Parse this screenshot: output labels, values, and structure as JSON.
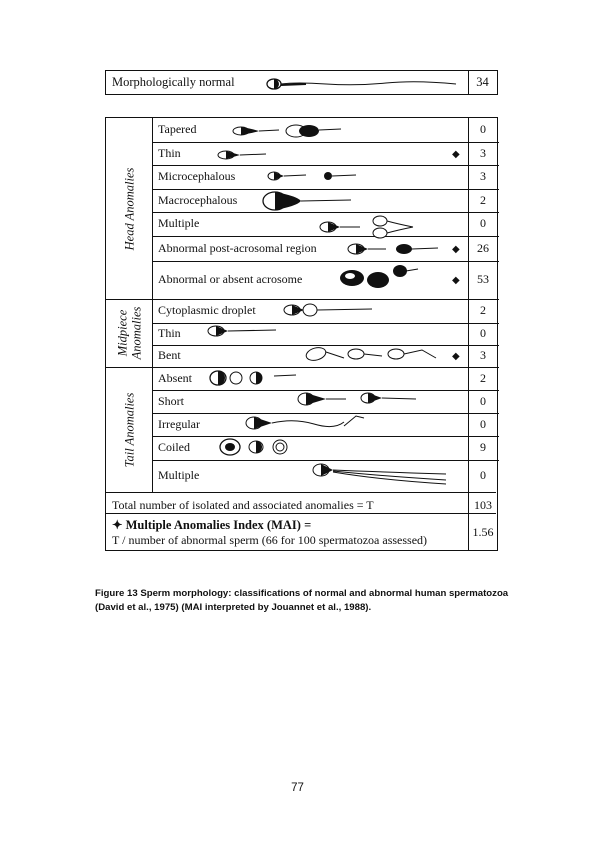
{
  "normal": {
    "label": "Morphologically normal",
    "value": "34"
  },
  "groups": [
    {
      "name": "Head Anomalies"
    },
    {
      "name": "Midpiece Anomalies"
    },
    {
      "name": "Tail Anomalies"
    }
  ],
  "rows": [
    {
      "label": "Tapered",
      "value": "0",
      "mai": false
    },
    {
      "label": "Thin",
      "value": "3",
      "mai": true
    },
    {
      "label": "Microcephalous",
      "value": "3",
      "mai": false
    },
    {
      "label": "Macrocephalous",
      "value": "2",
      "mai": false
    },
    {
      "label": "Multiple",
      "value": "0",
      "mai": false
    },
    {
      "label": "Abnormal post-acrosomal region",
      "value": "26",
      "mai": true
    },
    {
      "label": "Abnormal or absent acrosome",
      "value": "53",
      "mai": true
    },
    {
      "label": "Cytoplasmic droplet",
      "value": "2",
      "mai": false
    },
    {
      "label": "Thin",
      "value": "0",
      "mai": false
    },
    {
      "label": "Bent",
      "value": "3",
      "mai": true
    },
    {
      "label": "Absent",
      "value": "2",
      "mai": false
    },
    {
      "label": "Short",
      "value": "0",
      "mai": false
    },
    {
      "label": "Irregular",
      "value": "0",
      "mai": false
    },
    {
      "label": "Coiled",
      "value": "9",
      "mai": false
    },
    {
      "label": "Multiple",
      "value": "0",
      "mai": false
    }
  ],
  "diamond_symbol": "◆",
  "total": {
    "label": "Total number of isolated and associated anomalies = T",
    "value": "103"
  },
  "mai": {
    "title": "✦ Multiple Anomalies Index (MAI) =",
    "formula": "T / number of abnormal sperm (66 for 100 spermatozoa assessed)",
    "value": "1.56"
  },
  "caption": "Figure 13 Sperm morphology: classifications of normal and abnormal human spermatozoa (David et al., 1975) (MAI interpreted by Jouannet et al., 1988).",
  "page_number": "77"
}
